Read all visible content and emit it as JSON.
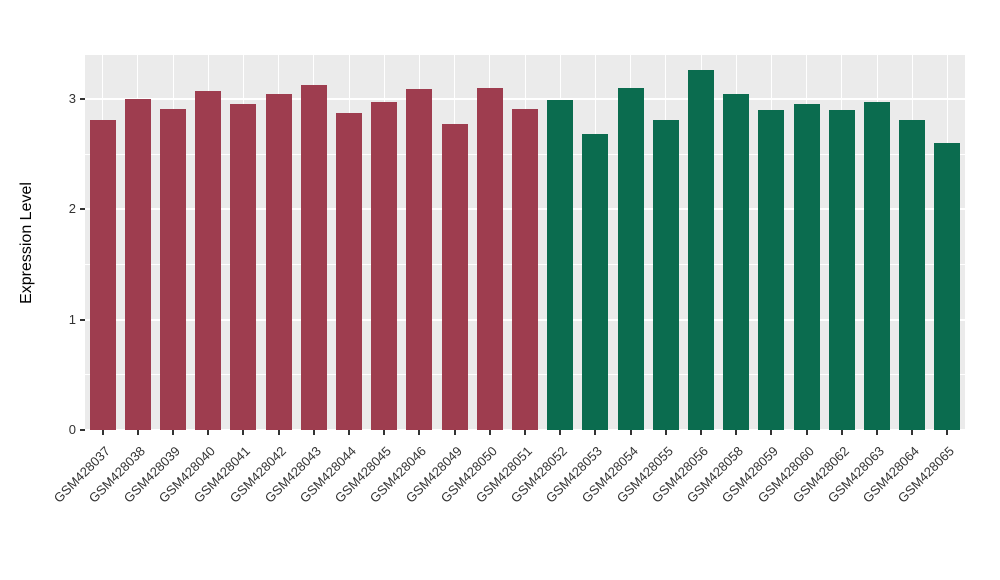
{
  "chart_data": {
    "type": "bar",
    "title": "",
    "xlabel": "",
    "ylabel": "Expression Level",
    "ylim": [
      0,
      3.4
    ],
    "yticks": [
      0,
      1,
      2,
      3
    ],
    "grid": "on",
    "legend": "none",
    "categories": [
      "GSM428037",
      "GSM428038",
      "GSM428039",
      "GSM428040",
      "GSM428041",
      "GSM428042",
      "GSM428043",
      "GSM428044",
      "GSM428045",
      "GSM428046",
      "GSM428049",
      "GSM428050",
      "GSM428051",
      "GSM428052",
      "GSM428053",
      "GSM428054",
      "GSM428055",
      "GSM428056",
      "GSM428058",
      "GSM428059",
      "GSM428060",
      "GSM428062",
      "GSM428063",
      "GSM428064",
      "GSM428065"
    ],
    "values": [
      2.81,
      3.0,
      2.91,
      3.07,
      2.96,
      3.05,
      3.13,
      2.87,
      2.97,
      3.09,
      2.77,
      3.1,
      2.91,
      2.99,
      2.68,
      3.1,
      2.81,
      3.26,
      3.05,
      2.9,
      2.96,
      2.9,
      2.97,
      2.81,
      2.6
    ],
    "groups": [
      "A",
      "A",
      "A",
      "A",
      "A",
      "A",
      "A",
      "A",
      "A",
      "A",
      "A",
      "A",
      "A",
      "B",
      "B",
      "B",
      "B",
      "B",
      "B",
      "B",
      "B",
      "B",
      "B",
      "B",
      "B"
    ]
  },
  "colors": {
    "A": "#9E3D4F",
    "B": "#0B6C4F",
    "panel_bg": "#EBEBEB",
    "grid": "#FFFFFF",
    "axis_text": "#333333"
  }
}
